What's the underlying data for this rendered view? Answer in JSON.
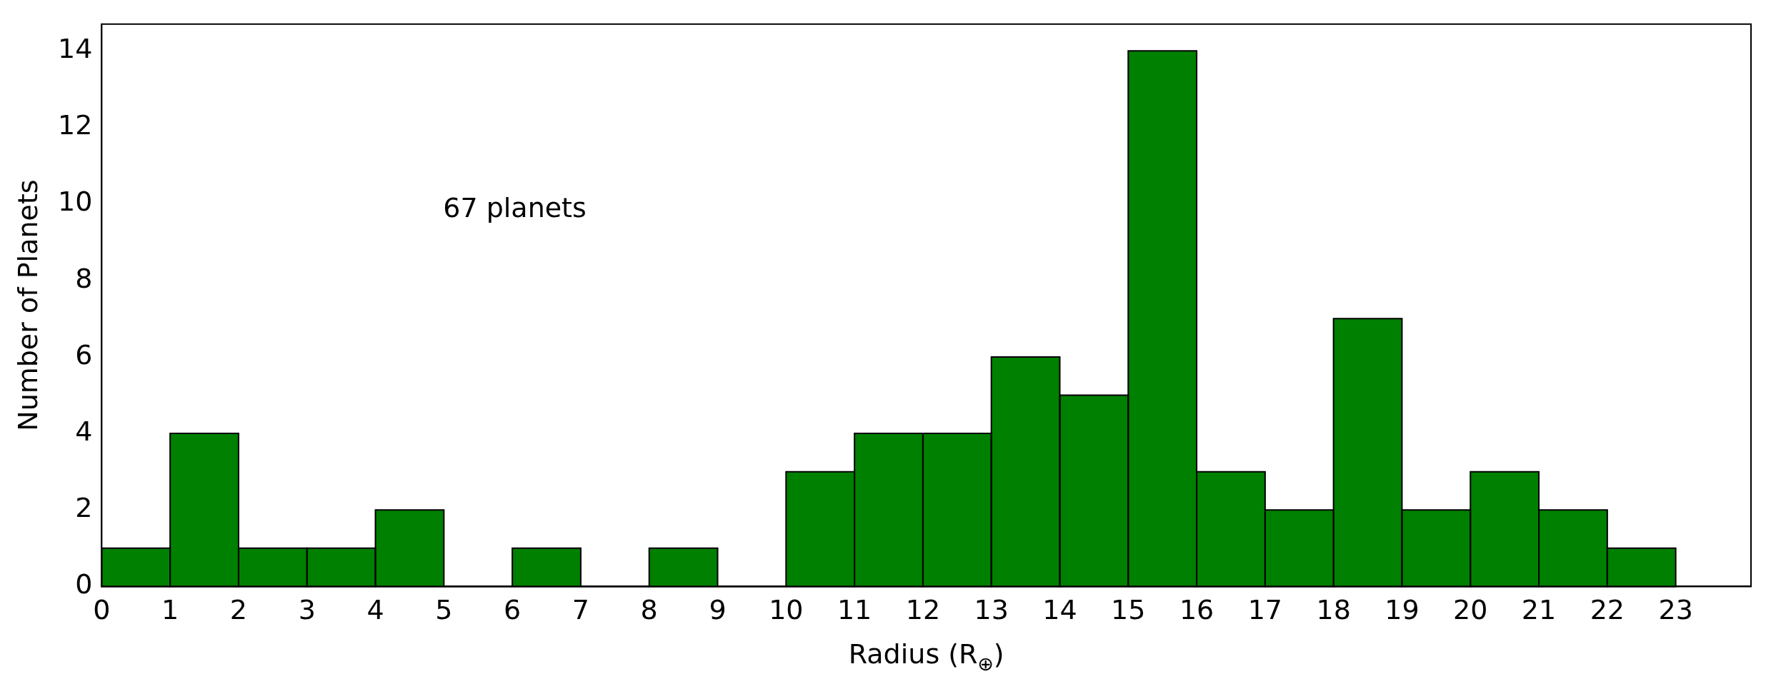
{
  "chart_data": {
    "type": "histogram",
    "xlabel": "Radius (R$_{⊕}$)",
    "ylabel": "Number of Planets",
    "annotations": [
      "67 planets"
    ],
    "bins": [
      0,
      1,
      2,
      3,
      4,
      5,
      6,
      7,
      8,
      9,
      10,
      11,
      12,
      13,
      14,
      15,
      16,
      17,
      18,
      19,
      20,
      21,
      22,
      23
    ],
    "values": [
      1,
      4,
      1,
      1,
      2,
      0,
      1,
      0,
      1,
      0,
      3,
      4,
      4,
      6,
      5,
      14,
      3,
      2,
      7,
      2,
      3,
      2,
      1
    ],
    "color": "#008000",
    "xlim": [
      0,
      24.1
    ],
    "xticks": [
      0,
      1,
      2,
      3,
      4,
      5,
      6,
      7,
      8,
      9,
      10,
      11,
      12,
      13,
      14,
      15,
      16,
      17,
      18,
      19,
      20,
      21,
      22,
      23
    ],
    "ylim": [
      0,
      14.7
    ],
    "yticks": [
      0,
      2,
      4,
      6,
      8,
      10,
      12,
      14
    ],
    "grid": false,
    "legend": false
  }
}
